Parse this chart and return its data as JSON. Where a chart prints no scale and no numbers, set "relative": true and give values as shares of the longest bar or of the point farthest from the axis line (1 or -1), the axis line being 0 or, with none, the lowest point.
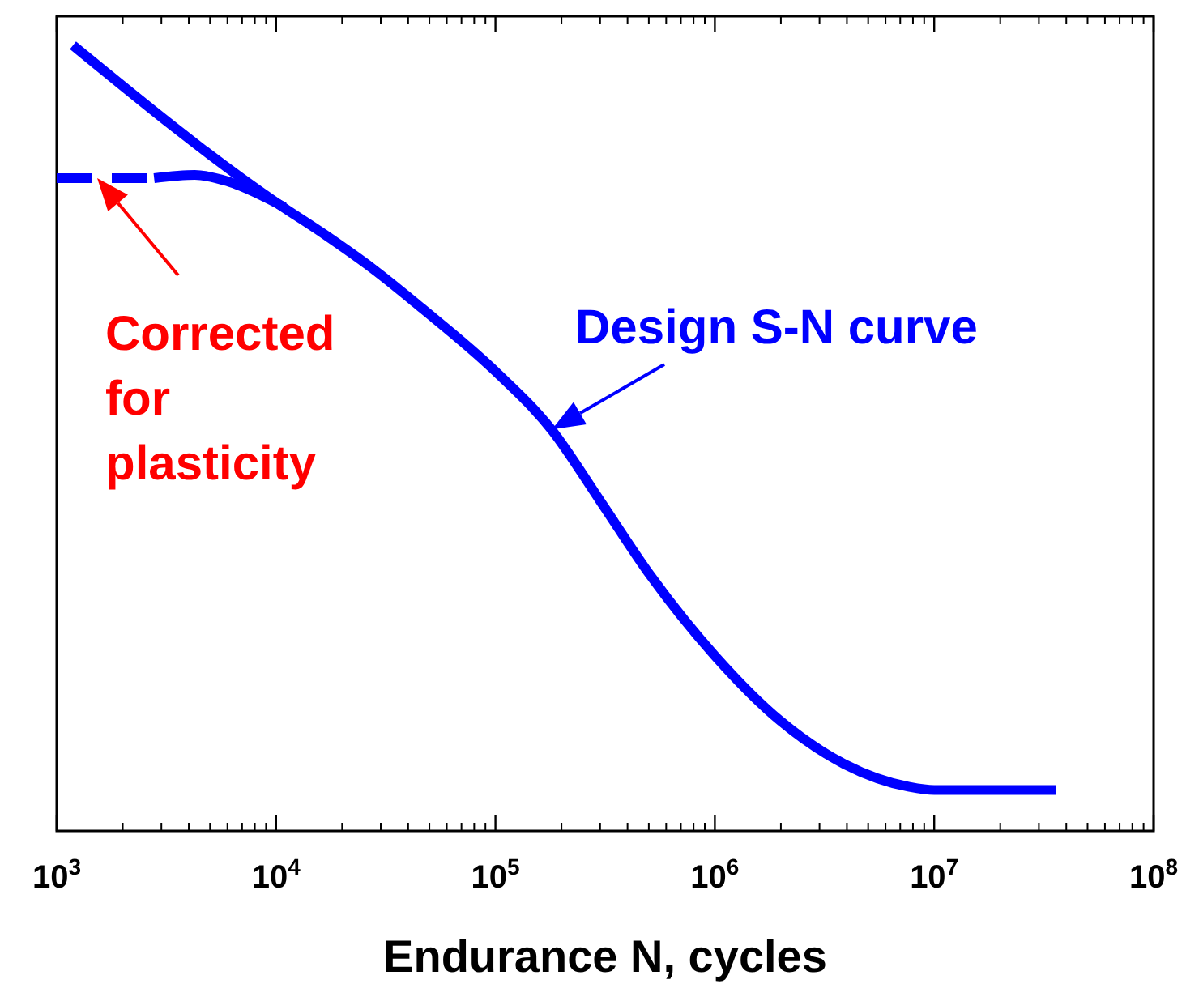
{
  "chart_data": {
    "type": "line",
    "relative": true,
    "log": "x",
    "xlabel": "Endurance N, cycles",
    "xlim": [
      1000,
      100000000
    ],
    "xticks": [
      {
        "value": 1000,
        "label": "10$^{3}$"
      },
      {
        "value": 10000,
        "label": "10$^{4}$"
      },
      {
        "value": 100000,
        "label": "10$^{5}$"
      },
      {
        "value": 1000000,
        "label": "10$^{6}$"
      },
      {
        "value": 10000000,
        "label": "10$^{7}$"
      },
      {
        "value": 100000000,
        "label": "10$^{8}$"
      }
    ],
    "series": [
      {
        "color": "#0000ff",
        "line_style": "solid",
        "x": [
          1186,
          10000,
          16700,
          27800,
          46400,
          100000,
          181000,
          302000,
          506000,
          1000000,
          1990000,
          3900000,
          7700000,
          10000000,
          36000000
        ],
        "values": [
          1.0,
          0.8,
          0.759,
          0.715,
          0.665,
          0.585,
          0.51,
          0.419,
          0.326,
          0.223,
          0.14,
          0.085,
          0.056,
          0.052,
          0.052
        ]
      },
      {
        "color": "#0000ff",
        "line_style": "dashed",
        "x": [
          1000,
          2780
        ],
        "values": [
          0.831,
          0.831
        ]
      },
      {
        "color": "#0000ff",
        "line_style": "solid",
        "x": [
          2780,
          4260,
          5990,
          8420,
          10900
        ],
        "values": [
          0.831,
          0.835,
          0.827,
          0.81,
          0.794
        ]
      }
    ],
    "annotations": [
      {
        "text": "Design S-N curve",
        "x": 181000,
        "y": 0.511
      },
      {
        "text": "Corrected for plasticity",
        "x": 1530,
        "y": 0.831
      }
    ]
  }
}
